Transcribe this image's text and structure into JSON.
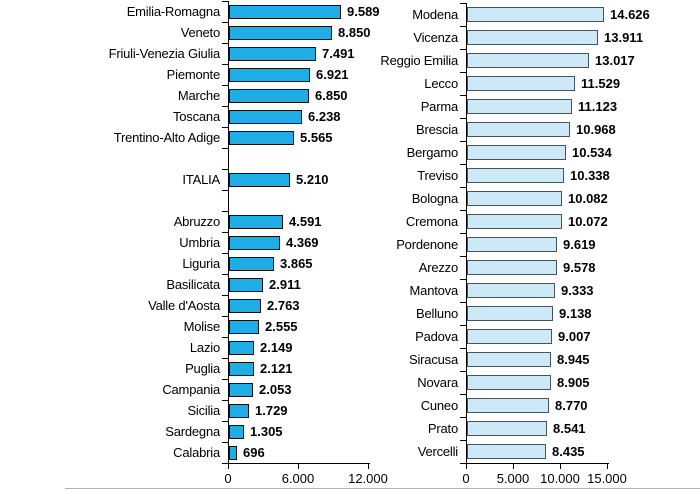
{
  "page": {
    "background": "#ffffff",
    "divider_color": "#b0b0b0"
  },
  "chart_data": [
    {
      "type": "bar",
      "orientation": "horizontal",
      "name": "regions",
      "bar_color": "#1fade8",
      "bar_border_color": "#101010",
      "axis_color": "#000000",
      "xlim": [
        0,
        12000
      ],
      "x_ticks": [
        {
          "value": 0,
          "label": "0"
        },
        {
          "value": 6000,
          "label": "6.000"
        },
        {
          "value": 12000,
          "label": "12.000"
        }
      ],
      "groups": [
        {
          "items": [
            {
              "label": "Emilia-Romagna",
              "value": 9589,
              "value_label": "9.589"
            },
            {
              "label": "Veneto",
              "value": 8850,
              "value_label": "8.850"
            },
            {
              "label": "Friuli-Venezia Giulia",
              "value": 7491,
              "value_label": "7.491"
            },
            {
              "label": "Piemonte",
              "value": 6921,
              "value_label": "6.921"
            },
            {
              "label": "Marche",
              "value": 6850,
              "value_label": "6.850"
            },
            {
              "label": "Toscana",
              "value": 6238,
              "value_label": "6.238"
            },
            {
              "label": "Trentino-Alto Adige",
              "value": 5565,
              "value_label": "5.565"
            }
          ]
        },
        {
          "items": [
            {
              "label": "ITALIA",
              "value": 5210,
              "value_label": "5.210"
            }
          ]
        },
        {
          "items": [
            {
              "label": "Abruzzo",
              "value": 4591,
              "value_label": "4.591"
            },
            {
              "label": "Umbria",
              "value": 4369,
              "value_label": "4.369"
            },
            {
              "label": "Liguria",
              "value": 3865,
              "value_label": "3.865"
            },
            {
              "label": "Basilicata",
              "value": 2911,
              "value_label": "2.911"
            },
            {
              "label": "Valle d'Aosta",
              "value": 2763,
              "value_label": "2.763"
            },
            {
              "label": "Molise",
              "value": 2555,
              "value_label": "2.555"
            },
            {
              "label": "Lazio",
              "value": 2149,
              "value_label": "2.149"
            },
            {
              "label": "Puglia",
              "value": 2121,
              "value_label": "2.121"
            },
            {
              "label": "Campania",
              "value": 2053,
              "value_label": "2.053"
            },
            {
              "label": "Sicilia",
              "value": 1729,
              "value_label": "1.729"
            },
            {
              "label": "Sardegna",
              "value": 1305,
              "value_label": "1.305"
            },
            {
              "label": "Calabria",
              "value": 696,
              "value_label": "696"
            }
          ]
        }
      ]
    },
    {
      "type": "bar",
      "orientation": "horizontal",
      "name": "provinces",
      "bar_color": "#cde9f7",
      "bar_border_color": "#46545d",
      "axis_color": "#000000",
      "xlim": [
        0,
        15000
      ],
      "x_ticks": [
        {
          "value": 0,
          "label": "0"
        },
        {
          "value": 5000,
          "label": "5.000"
        },
        {
          "value": 10000,
          "label": "10.000"
        },
        {
          "value": 15000,
          "label": "15.000"
        }
      ],
      "groups": [
        {
          "items": [
            {
              "label": "Modena",
              "value": 14626,
              "value_label": "14.626"
            },
            {
              "label": "Vicenza",
              "value": 13911,
              "value_label": "13.911"
            },
            {
              "label": "Reggio Emilia",
              "value": 13017,
              "value_label": "13.017"
            },
            {
              "label": "Lecco",
              "value": 11529,
              "value_label": "11.529"
            },
            {
              "label": "Parma",
              "value": 11123,
              "value_label": "11.123"
            },
            {
              "label": "Brescia",
              "value": 10968,
              "value_label": "10.968"
            },
            {
              "label": "Bergamo",
              "value": 10534,
              "value_label": "10.534"
            },
            {
              "label": "Treviso",
              "value": 10338,
              "value_label": "10.338"
            },
            {
              "label": "Bologna",
              "value": 10082,
              "value_label": "10.082"
            },
            {
              "label": "Cremona",
              "value": 10072,
              "value_label": "10.072"
            },
            {
              "label": "Pordenone",
              "value": 9619,
              "value_label": "9.619"
            },
            {
              "label": "Arezzo",
              "value": 9578,
              "value_label": "9.578"
            },
            {
              "label": "Mantova",
              "value": 9333,
              "value_label": "9.333"
            },
            {
              "label": "Belluno",
              "value": 9138,
              "value_label": "9.138"
            },
            {
              "label": "Padova",
              "value": 9007,
              "value_label": "9.007"
            },
            {
              "label": "Siracusa",
              "value": 8945,
              "value_label": "8.945"
            },
            {
              "label": "Novara",
              "value": 8905,
              "value_label": "8.905"
            },
            {
              "label": "Cuneo",
              "value": 8770,
              "value_label": "8.770"
            },
            {
              "label": "Prato",
              "value": 8541,
              "value_label": "8.541"
            },
            {
              "label": "Vercelli",
              "value": 8435,
              "value_label": "8.435"
            }
          ]
        }
      ]
    }
  ]
}
